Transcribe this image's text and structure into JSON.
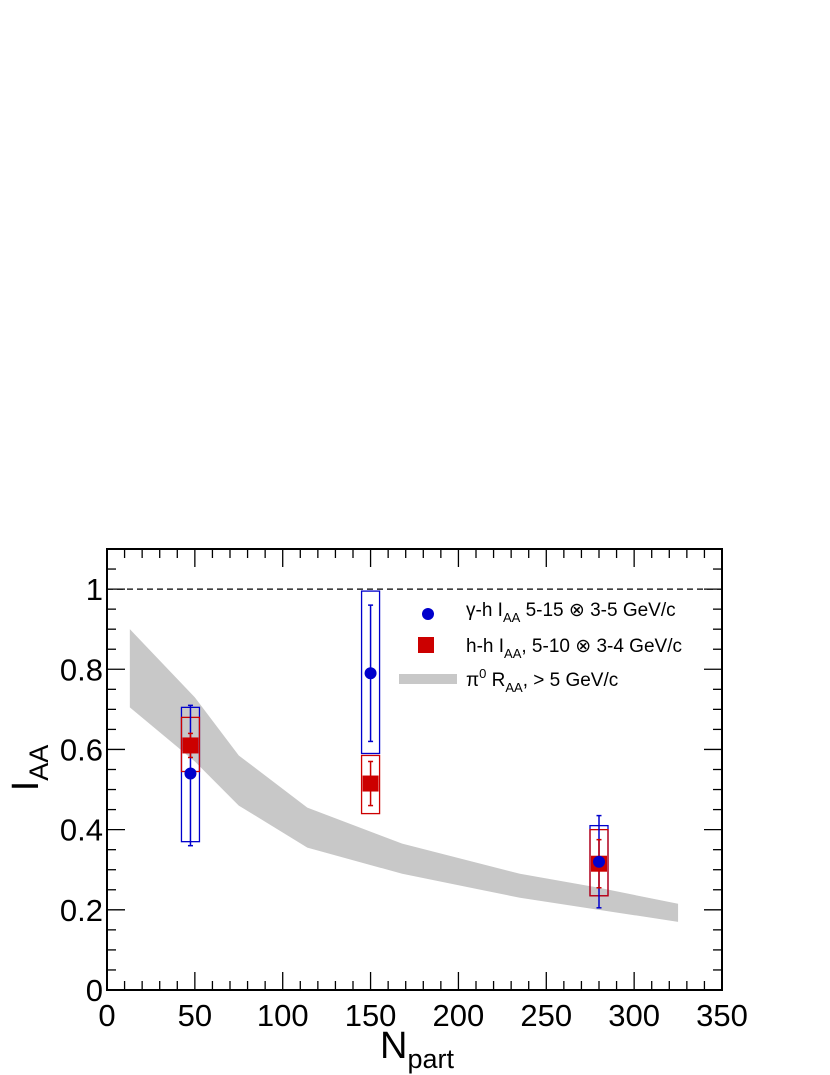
{
  "chart_data": {
    "type": "scatter",
    "xlabel": "N",
    "xlabel_sub": "part",
    "ylabel": "I",
    "ylabel_sub": "AA",
    "xlim": [
      0,
      350
    ],
    "ylim": [
      0,
      1.1
    ],
    "x_ticks": [
      0,
      50,
      100,
      150,
      200,
      250,
      300,
      350
    ],
    "x_tick_labels": [
      "0",
      "50",
      "100",
      "150",
      "200",
      "250",
      "300",
      "350"
    ],
    "y_ticks": [
      0,
      0.2,
      0.4,
      0.6,
      0.8,
      1.0
    ],
    "y_tick_labels": [
      "0",
      "0.2",
      "0.4",
      "0.6",
      "0.8",
      "1"
    ],
    "grid": false,
    "reference_line": {
      "y": 1.0,
      "style": "dashed"
    },
    "legend_position": "top-right",
    "series": [
      {
        "marker": "circle",
        "color": "#0000cc",
        "legend": {
          "pre": "γ-h I",
          "sub": "AA",
          "post": " 5-15 ⊗ 3-5 GeV/c"
        },
        "points": [
          {
            "x": 47.5,
            "y": 0.54,
            "stat_low": 0.36,
            "stat_high": 0.71,
            "sys_low": 0.37,
            "sys_high": 0.705
          },
          {
            "x": 150,
            "y": 0.79,
            "stat_low": 0.62,
            "stat_high": 0.96,
            "sys_low": 0.59,
            "sys_high": 0.995
          },
          {
            "x": 280,
            "y": 0.32,
            "stat_low": 0.205,
            "stat_high": 0.435,
            "sys_low": 0.235,
            "sys_high": 0.41
          }
        ]
      },
      {
        "marker": "square",
        "color": "#cc0000",
        "legend": {
          "pre": "h-h I",
          "sub": "AA",
          "post": ", 5-10 ⊗ 3-4 GeV/c"
        },
        "points": [
          {
            "x": 47.5,
            "y": 0.61,
            "stat_low": 0.58,
            "stat_high": 0.64,
            "sys_low": 0.545,
            "sys_high": 0.68
          },
          {
            "x": 150,
            "y": 0.515,
            "stat_low": 0.46,
            "stat_high": 0.57,
            "sys_low": 0.44,
            "sys_high": 0.585
          },
          {
            "x": 280,
            "y": 0.315,
            "stat_low": 0.255,
            "stat_high": 0.375,
            "sys_low": 0.235,
            "sys_high": 0.4
          }
        ]
      },
      {
        "type": "band",
        "color": "#c8c8c8",
        "legend": {
          "pre": "π",
          "sup": "0",
          "mid": " R",
          "sub": "AA",
          "post": ", > 5 GeV/c"
        },
        "points": [
          {
            "x": 13,
            "low": 0.705,
            "high": 0.9
          },
          {
            "x": 50,
            "low": 0.57,
            "high": 0.73
          },
          {
            "x": 75,
            "low": 0.46,
            "high": 0.585
          },
          {
            "x": 114,
            "low": 0.355,
            "high": 0.455
          },
          {
            "x": 168,
            "low": 0.29,
            "high": 0.365
          },
          {
            "x": 235,
            "low": 0.23,
            "high": 0.29
          },
          {
            "x": 280,
            "low": 0.2,
            "high": 0.255
          },
          {
            "x": 325,
            "low": 0.17,
            "high": 0.215
          }
        ]
      }
    ]
  }
}
